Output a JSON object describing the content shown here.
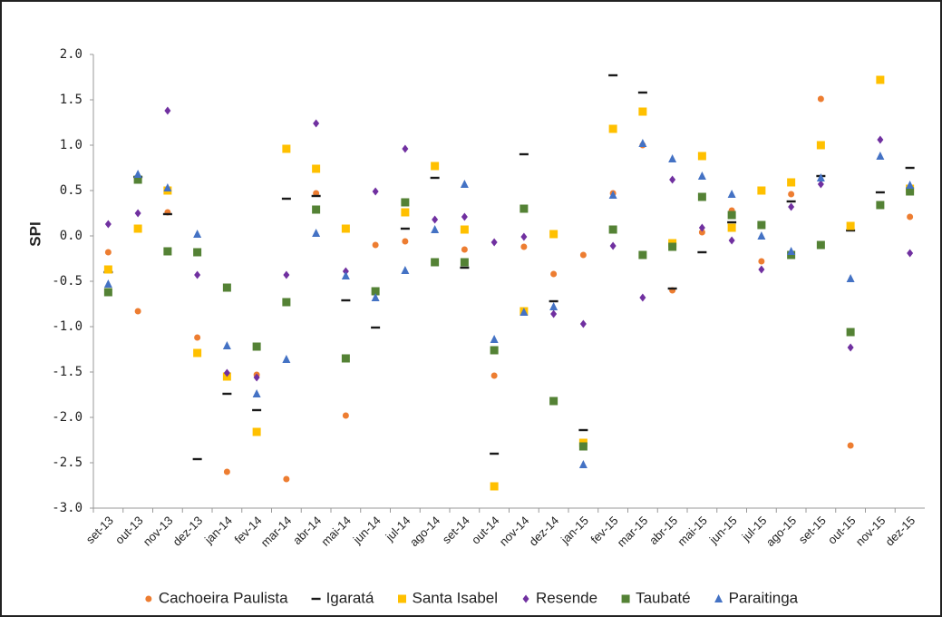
{
  "chart_data": {
    "type": "scatter",
    "y_label": "SPI",
    "categories": [
      "set-13",
      "out-13",
      "nov-13",
      "dez-13",
      "jan-14",
      "fev-14",
      "mar-14",
      "abr-14",
      "mai-14",
      "jun-14",
      "jul-14",
      "ago-14",
      "set-14",
      "out-14",
      "nov-14",
      "dez-14",
      "jan-15",
      "fev-15",
      "mar-15",
      "abr-15",
      "mai-15",
      "jun-15",
      "jul-15",
      "ago-15",
      "set-15",
      "out-15",
      "nov-15",
      "dez-15"
    ],
    "ylim": [
      -3,
      2
    ],
    "yticks": [
      {
        "value": 2,
        "label": "2.0"
      },
      1.5,
      {
        "value": 1,
        "label": "1.0"
      },
      0.5,
      {
        "value": 0,
        "label": "0.0"
      },
      -0.5,
      {
        "value": -1,
        "label": "-1.0"
      },
      -1.5,
      {
        "value": -2,
        "label": "-2.0"
      },
      -2.5,
      {
        "value": -3,
        "label": "-3.0"
      }
    ],
    "grid": false,
    "legend": "bottom",
    "series": [
      {
        "name": "Cachoeira Paulista",
        "color": "#ed7d31",
        "marker": "circle",
        "values": [
          -0.18,
          -0.83,
          0.26,
          -1.12,
          -2.6,
          -1.53,
          -2.68,
          0.47,
          -1.98,
          -0.1,
          -0.06,
          null,
          -0.15,
          -1.54,
          -0.12,
          -0.42,
          -0.21,
          0.47,
          1.0,
          -0.6,
          0.04,
          0.28,
          -0.28,
          0.46,
          1.51,
          -2.31,
          null,
          0.21
        ]
      },
      {
        "name": "Igaratá",
        "color": "#1a1a1a",
        "marker": "dash",
        "values": [
          -0.4,
          0.65,
          0.24,
          -2.46,
          -1.74,
          -1.92,
          0.41,
          0.44,
          -0.71,
          -1.01,
          0.08,
          0.64,
          -0.35,
          -2.4,
          0.9,
          -0.72,
          -2.14,
          1.77,
          1.58,
          -0.58,
          -0.18,
          0.15,
          null,
          0.38,
          0.66,
          0.06,
          0.48,
          0.75
        ]
      },
      {
        "name": "Santa Isabel",
        "color": "#ffc000",
        "marker": "square",
        "values": [
          -0.37,
          0.08,
          0.5,
          -1.29,
          -1.55,
          -2.16,
          0.96,
          0.74,
          0.08,
          null,
          0.26,
          0.77,
          0.07,
          -2.76,
          -0.83,
          0.02,
          -2.28,
          1.18,
          1.37,
          -0.08,
          0.88,
          0.09,
          0.5,
          0.59,
          1.0,
          0.11,
          1.72,
          0.52
        ]
      },
      {
        "name": "Resende",
        "color": "#7030a0",
        "marker": "diamond",
        "values": [
          0.13,
          0.25,
          1.38,
          -0.43,
          -1.51,
          -1.56,
          -0.43,
          1.24,
          -0.39,
          0.49,
          0.96,
          0.18,
          0.21,
          -0.07,
          -0.01,
          -0.86,
          -0.97,
          -0.11,
          -0.68,
          0.62,
          0.09,
          -0.05,
          -0.37,
          0.32,
          0.57,
          -1.23,
          1.06,
          -0.19
        ]
      },
      {
        "name": "Taubaté",
        "color": "#548235",
        "marker": "square",
        "values": [
          -0.62,
          0.62,
          -0.17,
          -0.18,
          -0.57,
          -1.22,
          -0.73,
          0.29,
          -1.35,
          -0.61,
          0.37,
          -0.29,
          -0.29,
          -1.26,
          0.3,
          -1.82,
          -2.32,
          0.07,
          -0.21,
          -0.12,
          0.43,
          0.23,
          0.12,
          -0.21,
          -0.1,
          -1.06,
          0.34,
          0.49
        ]
      },
      {
        "name": "Paraitinga",
        "color": "#4472c4",
        "marker": "triangle",
        "values": [
          -0.53,
          0.68,
          0.53,
          0.02,
          -1.21,
          -1.74,
          -1.36,
          0.03,
          -0.44,
          -0.68,
          -0.38,
          0.07,
          0.57,
          -1.14,
          -0.84,
          -0.78,
          -2.52,
          0.45,
          1.02,
          0.85,
          0.66,
          0.46,
          0.0,
          -0.17,
          0.64,
          -0.47,
          0.88,
          0.56
        ]
      }
    ]
  }
}
